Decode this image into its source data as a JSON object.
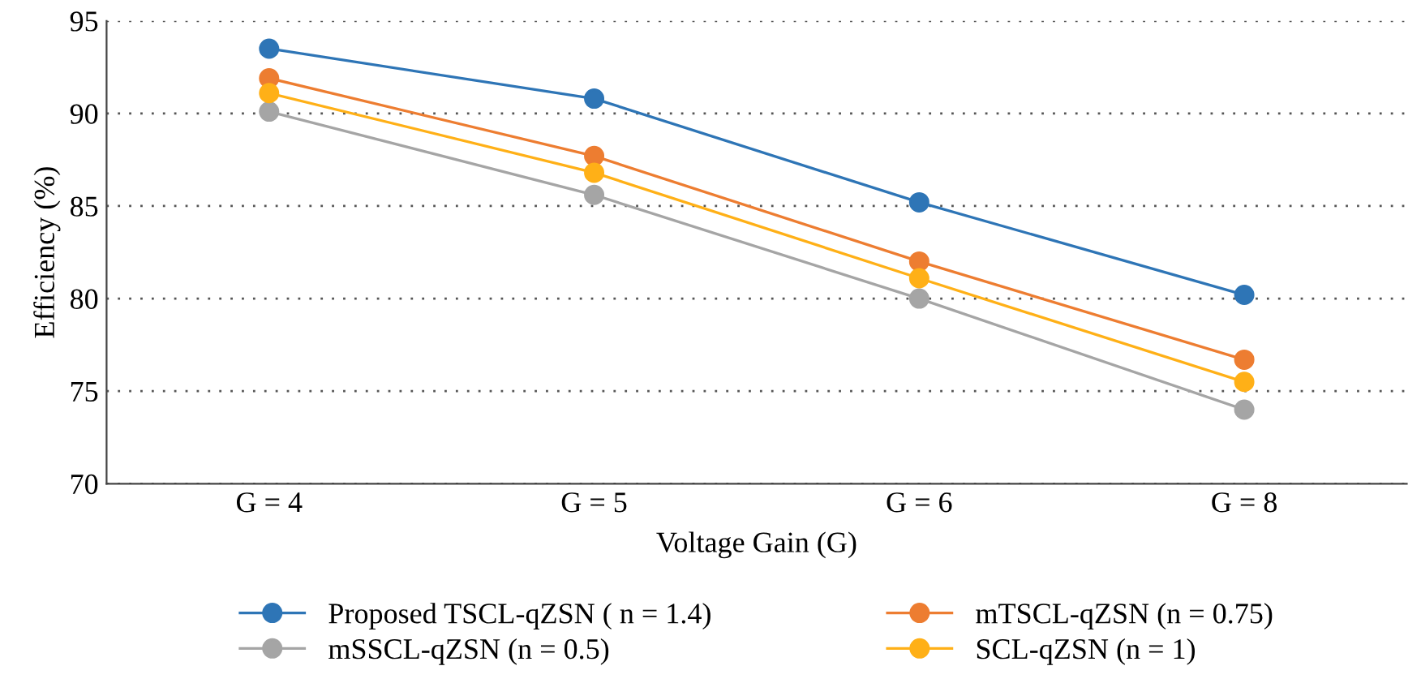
{
  "chart_data": {
    "type": "line",
    "xlabel": "Voltage Gain (G)",
    "ylabel": "Efficiency (%)",
    "categories": [
      "G = 4",
      "G = 5",
      "G = 6",
      "G = 8"
    ],
    "series": [
      {
        "name": "Proposed TSCL-qZSN ( n = 1.4)",
        "color": "#2e75b6",
        "values": [
          93.5,
          90.8,
          85.2,
          80.2
        ]
      },
      {
        "name": "mSSCL-qZSN (n = 0.5)",
        "color": "#a5a5a5",
        "values": [
          90.1,
          85.6,
          80.0,
          74.0
        ]
      },
      {
        "name": "mTSCL-qZSN (n = 0.75)",
        "color": "#ed7d31",
        "values": [
          91.9,
          87.7,
          82.0,
          76.7
        ]
      },
      {
        "name": "SCL-qZSN (n = 1)",
        "color": "#ffb017",
        "values": [
          91.1,
          86.8,
          81.1,
          75.5
        ]
      }
    ],
    "ylim": [
      70,
      95
    ],
    "yticks": [
      70,
      75,
      80,
      85,
      90,
      95
    ],
    "grid": "y",
    "legend": "bottom",
    "marker": "circle",
    "line_style": "solid"
  }
}
